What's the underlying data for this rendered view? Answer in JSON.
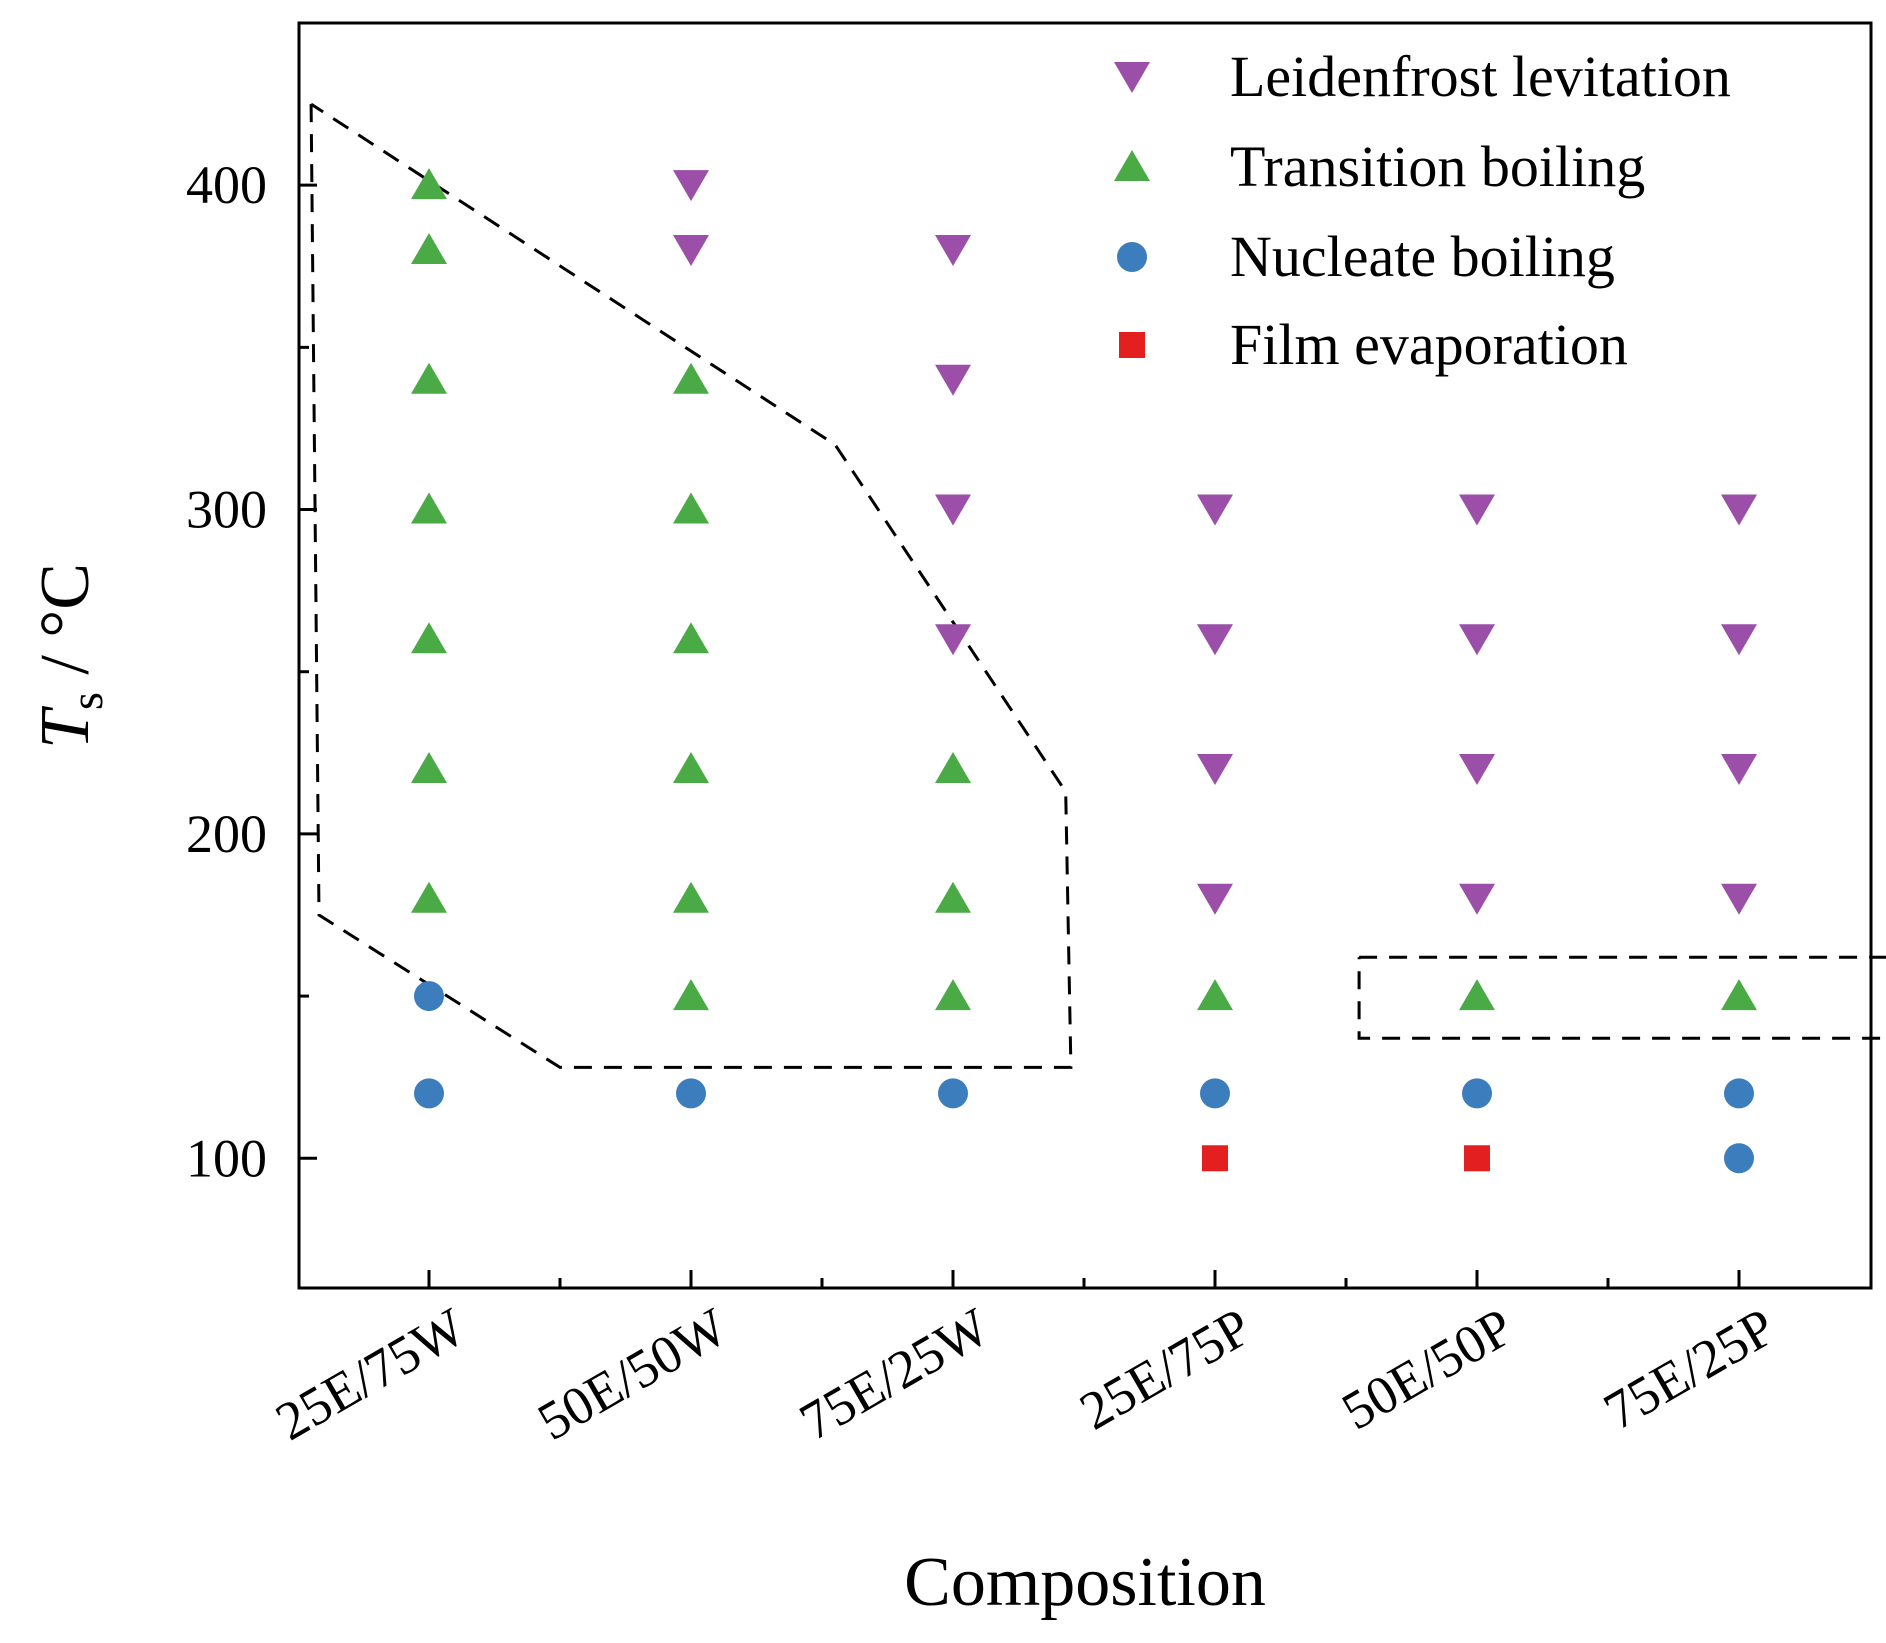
{
  "chart_data": {
    "type": "scatter",
    "title": "",
    "xlabel": "Composition",
    "ylabel": {
      "symbol": "T",
      "subscript": "s",
      "unit": " / °C"
    },
    "categories": [
      "25E/75W",
      "50E/50W",
      "75E/25W",
      "25E/75P",
      "50E/50P",
      "75E/25P"
    ],
    "ylim": [
      60,
      450
    ],
    "yticks": [
      100,
      200,
      300,
      400
    ],
    "legend_position": "top-right",
    "series": [
      {
        "name": "Leidenfrost levitation",
        "marker": "triangle-down",
        "color": "#9b4fa8",
        "points": [
          {
            "category": "50E/50W",
            "y": 400
          },
          {
            "category": "50E/50W",
            "y": 380
          },
          {
            "category": "75E/25W",
            "y": 380
          },
          {
            "category": "75E/25W",
            "y": 340
          },
          {
            "category": "75E/25W",
            "y": 300
          },
          {
            "category": "75E/25W",
            "y": 260
          },
          {
            "category": "25E/75P",
            "y": 300
          },
          {
            "category": "25E/75P",
            "y": 260
          },
          {
            "category": "25E/75P",
            "y": 220
          },
          {
            "category": "25E/75P",
            "y": 180
          },
          {
            "category": "50E/50P",
            "y": 300
          },
          {
            "category": "50E/50P",
            "y": 260
          },
          {
            "category": "50E/50P",
            "y": 220
          },
          {
            "category": "50E/50P",
            "y": 180
          },
          {
            "category": "75E/25P",
            "y": 300
          },
          {
            "category": "75E/25P",
            "y": 260
          },
          {
            "category": "75E/25P",
            "y": 220
          },
          {
            "category": "75E/25P",
            "y": 180
          }
        ]
      },
      {
        "name": "Transition boiling",
        "marker": "triangle-up",
        "color": "#4aaa46",
        "points": [
          {
            "category": "25E/75W",
            "y": 400
          },
          {
            "category": "25E/75W",
            "y": 380
          },
          {
            "category": "25E/75W",
            "y": 340
          },
          {
            "category": "25E/75W",
            "y": 300
          },
          {
            "category": "25E/75W",
            "y": 260
          },
          {
            "category": "25E/75W",
            "y": 220
          },
          {
            "category": "25E/75W",
            "y": 180
          },
          {
            "category": "50E/50W",
            "y": 340
          },
          {
            "category": "50E/50W",
            "y": 300
          },
          {
            "category": "50E/50W",
            "y": 260
          },
          {
            "category": "50E/50W",
            "y": 220
          },
          {
            "category": "50E/50W",
            "y": 180
          },
          {
            "category": "50E/50W",
            "y": 150
          },
          {
            "category": "75E/25W",
            "y": 220
          },
          {
            "category": "75E/25W",
            "y": 180
          },
          {
            "category": "75E/25W",
            "y": 150
          },
          {
            "category": "25E/75P",
            "y": 150
          },
          {
            "category": "50E/50P",
            "y": 150
          },
          {
            "category": "75E/25P",
            "y": 150
          }
        ]
      },
      {
        "name": "Nucleate boiling",
        "marker": "circle",
        "color": "#3b7dbd",
        "points": [
          {
            "category": "25E/75W",
            "y": 150
          },
          {
            "category": "25E/75W",
            "y": 120
          },
          {
            "category": "50E/50W",
            "y": 120
          },
          {
            "category": "75E/25W",
            "y": 120
          },
          {
            "category": "25E/75P",
            "y": 120
          },
          {
            "category": "50E/50P",
            "y": 120
          },
          {
            "category": "75E/25P",
            "y": 120
          },
          {
            "category": "75E/25P",
            "y": 100
          }
        ]
      },
      {
        "name": "Film evaporation",
        "marker": "square",
        "color": "#e3201f",
        "points": [
          {
            "category": "25E/75P",
            "y": 100
          },
          {
            "category": "50E/50P",
            "y": 100
          }
        ]
      }
    ],
    "annotations": [
      {
        "type": "dashed-region",
        "name": "transition-region-water",
        "points": [
          {
            "cat": 0.55,
            "y": 425
          },
          {
            "cat": 0.58,
            "y": 175
          },
          {
            "cat": 1.5,
            "y": 128
          },
          {
            "cat": 3.45,
            "y": 128
          },
          {
            "cat": 3.43,
            "y": 213
          },
          {
            "cat": 2.55,
            "y": 320
          },
          {
            "cat": 0.55,
            "y": 425
          }
        ]
      },
      {
        "type": "dashed-region",
        "name": "transition-region-pg",
        "points": [
          {
            "cat": 4.55,
            "y": 162
          },
          {
            "cat": 7.05,
            "y": 162
          },
          {
            "cat": 7.05,
            "y": 137
          },
          {
            "cat": 4.55,
            "y": 137
          },
          {
            "cat": 4.55,
            "y": 162
          }
        ]
      }
    ]
  }
}
